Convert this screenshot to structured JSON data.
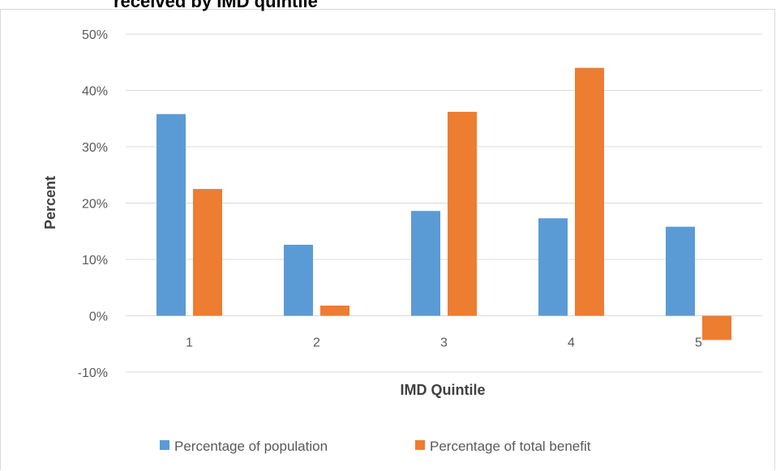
{
  "chart_data": {
    "type": "bar",
    "title": "received by IMD quintile",
    "xlabel": "IMD Quintile",
    "ylabel": "Percent",
    "categories": [
      "1",
      "2",
      "3",
      "4",
      "5"
    ],
    "series": [
      {
        "name": "Percentage of population",
        "color": "#5b9bd5",
        "values": [
          35.8,
          12.6,
          18.6,
          17.3,
          15.8
        ]
      },
      {
        "name": "Percentage of total benefit",
        "color": "#ed7d31",
        "values": [
          22.5,
          1.8,
          36.2,
          44.0,
          -4.3
        ]
      }
    ],
    "ylim": [
      -10,
      50
    ],
    "yticks": [
      "50%",
      "40%",
      "30%",
      "20%",
      "10%",
      "0%",
      "-10%"
    ],
    "grid": true,
    "legend": "bottom"
  }
}
